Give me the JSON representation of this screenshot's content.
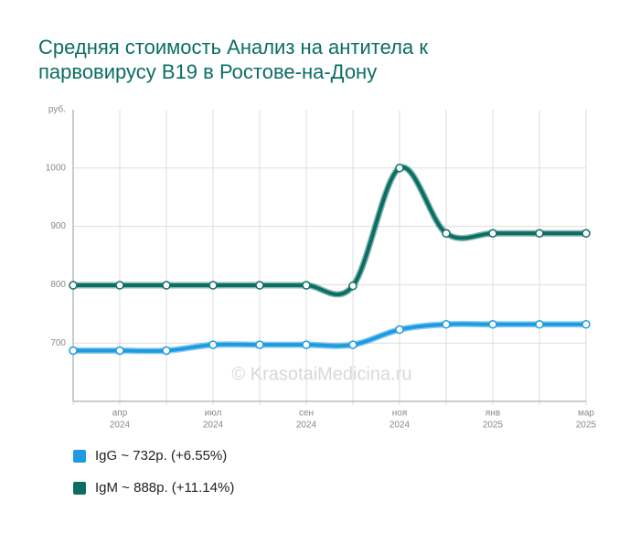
{
  "chart_data": {
    "type": "line",
    "title": "Средняя стоимость Анализ на антитела к парвовирусу B19 в Ростове-на-Дону",
    "watermark": "© KrasotaiMedicina.ru",
    "categories": [
      null,
      "апр",
      null,
      "июл",
      null,
      "сен",
      null,
      "ноя",
      null,
      "янв",
      null,
      "мар"
    ],
    "category_years": [
      null,
      "2024",
      null,
      "2024",
      null,
      "2024",
      null,
      "2024",
      null,
      "2025",
      null,
      "2025"
    ],
    "series": [
      {
        "name": "IgG ~ 732р. (+6.55%)",
        "color": "#1e9be0",
        "values": [
          687,
          687,
          687,
          697,
          697,
          697,
          697,
          723,
          732,
          732,
          732,
          732
        ]
      },
      {
        "name": "IgM ~ 888р. (+11.14%)",
        "color": "#0b6e63",
        "values": [
          799,
          799,
          799,
          799,
          799,
          799,
          798,
          1000,
          888,
          888,
          888,
          888
        ]
      }
    ],
    "ylim": [
      600,
      1100
    ],
    "yticks": [
      700,
      800,
      900,
      1000,
      {
        "value": 1100,
        "label": "руб."
      }
    ],
    "grid": true
  }
}
